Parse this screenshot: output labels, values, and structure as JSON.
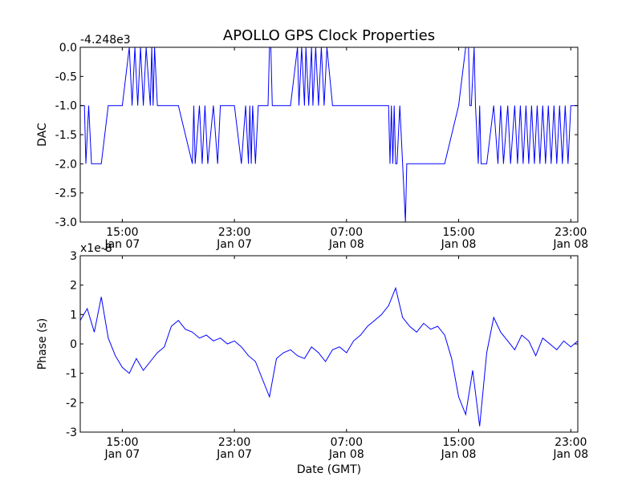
{
  "title": "APOLLO GPS Clock Properties",
  "colors": {
    "line": "#0000ff",
    "axes": "#000000",
    "background": "#ffffff"
  },
  "chart_data": [
    {
      "type": "line",
      "ylabel": "DAC",
      "xlabel": "",
      "offset_text": "-4.248e3",
      "ylim": [
        -3.0,
        0.0
      ],
      "yticks": [
        "0.0",
        "-0.5",
        "-1.0",
        "-1.5",
        "-2.0",
        "-2.5",
        "-3.0"
      ],
      "ytick_values": [
        0.0,
        -0.5,
        -1.0,
        -1.5,
        -2.0,
        -2.5,
        -3.0
      ],
      "xticks": [
        {
          "time": "15:00",
          "date": "Jan 07"
        },
        {
          "time": "23:00",
          "date": "Jan 07"
        },
        {
          "time": "07:00",
          "date": "Jan 08"
        },
        {
          "time": "15:00",
          "date": "Jan 08"
        },
        {
          "time": "23:00",
          "date": "Jan 08"
        }
      ],
      "xlim": [
        "Jan 07 12:00",
        "Jan 08 23:30"
      ],
      "series": [
        {
          "x": [
            "Jan 07 12:00",
            "Jan 07 12:18",
            "Jan 07 12:24",
            "Jan 07 12:36",
            "Jan 07 12:48",
            "Jan 07 13:00",
            "Jan 07 13:30",
            "Jan 07 14:00",
            "Jan 07 14:30",
            "Jan 07 15:00",
            "Jan 07 15:30",
            "Jan 07 15:42",
            "Jan 07 15:54",
            "Jan 07 16:06",
            "Jan 07 16:18",
            "Jan 07 16:30",
            "Jan 07 16:42",
            "Jan 07 17:00",
            "Jan 07 17:06",
            "Jan 07 17:12",
            "Jan 07 17:18",
            "Jan 07 17:30",
            "Jan 07 18:00",
            "Jan 07 19:00",
            "Jan 07 20:00",
            "Jan 07 20:06",
            "Jan 07 20:12",
            "Jan 07 20:30",
            "Jan 07 20:42",
            "Jan 07 20:54",
            "Jan 07 21:06",
            "Jan 07 21:30",
            "Jan 07 21:48",
            "Jan 07 22:00",
            "Jan 07 23:00",
            "Jan 07 23:30",
            "Jan 07 23:48",
            "Jan 08 00:00",
            "Jan 08 00:06",
            "Jan 08 00:12",
            "Jan 08 00:18",
            "Jan 08 00:30",
            "Jan 08 00:42",
            "Jan 08 01:00",
            "Jan 08 01:24",
            "Jan 08 01:30",
            "Jan 08 01:36",
            "Jan 08 01:42",
            "Jan 08 02:00",
            "Jan 08 03:00",
            "Jan 08 03:30",
            "Jan 08 03:36",
            "Jan 08 03:48",
            "Jan 08 04:00",
            "Jan 08 04:06",
            "Jan 08 04:18",
            "Jan 08 04:30",
            "Jan 08 04:36",
            "Jan 08 04:48",
            "Jan 08 05:00",
            "Jan 08 05:12",
            "Jan 08 05:24",
            "Jan 08 05:36",
            "Jan 08 06:00",
            "Jan 08 07:00",
            "Jan 08 08:00",
            "Jan 08 09:00",
            "Jan 08 10:00",
            "Jan 08 10:06",
            "Jan 08 10:12",
            "Jan 08 10:18",
            "Jan 08 10:24",
            "Jan 08 10:30",
            "Jan 08 10:36",
            "Jan 08 10:48",
            "Jan 08 11:00",
            "Jan 08 11:12",
            "Jan 08 11:18",
            "Jan 08 11:30",
            "Jan 08 11:36",
            "Jan 08 11:48",
            "Jan 08 12:00",
            "Jan 08 13:00",
            "Jan 08 14:00",
            "Jan 08 15:00",
            "Jan 08 15:30",
            "Jan 08 15:42",
            "Jan 08 15:48",
            "Jan 08 15:54",
            "Jan 08 16:06",
            "Jan 08 16:12",
            "Jan 08 16:24",
            "Jan 08 16:30",
            "Jan 08 16:36",
            "Jan 08 16:48",
            "Jan 08 17:00",
            "Jan 08 17:30",
            "Jan 08 17:48",
            "Jan 08 18:00",
            "Jan 08 18:12",
            "Jan 08 18:30",
            "Jan 08 18:42",
            "Jan 08 19:00",
            "Jan 08 19:12",
            "Jan 08 19:24",
            "Jan 08 19:36",
            "Jan 08 19:48",
            "Jan 08 20:00",
            "Jan 08 20:12",
            "Jan 08 20:24",
            "Jan 08 20:36",
            "Jan 08 20:48",
            "Jan 08 21:00",
            "Jan 08 21:12",
            "Jan 08 21:24",
            "Jan 08 21:36",
            "Jan 08 21:48",
            "Jan 08 22:00",
            "Jan 08 22:12",
            "Jan 08 22:24",
            "Jan 08 22:36",
            "Jan 08 22:48",
            "Jan 08 23:00",
            "Jan 08 23:12",
            "Jan 08 23:30"
          ],
          "y": [
            -1.0,
            -1.0,
            -2.0,
            -1.0,
            -2.0,
            -2.0,
            -2.0,
            -1.0,
            -1.0,
            -1.0,
            0.0,
            -1.0,
            0.0,
            -1.0,
            0.0,
            -1.0,
            0.0,
            -1.0,
            0.0,
            -1.0,
            0.0,
            -1.0,
            -1.0,
            -1.0,
            -2.0,
            -1.0,
            -2.0,
            -1.0,
            -2.0,
            -1.0,
            -2.0,
            -1.0,
            -2.0,
            -1.0,
            -1.0,
            -2.0,
            -1.0,
            -2.0,
            -1.0,
            -2.0,
            -1.0,
            -2.0,
            -1.0,
            -1.0,
            -1.0,
            0.0,
            0.0,
            -1.0,
            -1.0,
            -1.0,
            0.0,
            -1.0,
            0.0,
            -1.0,
            0.0,
            -1.0,
            0.0,
            -1.0,
            0.0,
            -1.0,
            0.0,
            -1.0,
            0.0,
            -1.0,
            -1.0,
            -1.0,
            -1.0,
            -1.0,
            -2.0,
            -1.0,
            -2.0,
            -1.0,
            -2.0,
            -2.0,
            -1.0,
            -2.0,
            -3.0,
            -2.0,
            -2.0,
            -2.0,
            -2.0,
            -2.0,
            -2.0,
            -2.0,
            -1.0,
            0.0,
            0.0,
            -1.0,
            -1.0,
            0.0,
            -1.0,
            -2.0,
            -1.0,
            -2.0,
            -2.0,
            -2.0,
            -1.0,
            -2.0,
            -1.0,
            -2.0,
            -1.0,
            -2.0,
            -1.0,
            -2.0,
            -1.0,
            -2.0,
            -1.0,
            -2.0,
            -1.0,
            -2.0,
            -1.0,
            -2.0,
            -1.0,
            -2.0,
            -1.0,
            -2.0,
            -1.0,
            -2.0,
            -1.0,
            -2.0,
            -1.0,
            -2.0,
            -1.0,
            -1.0,
            -1.0
          ]
        }
      ]
    },
    {
      "type": "line",
      "ylabel": "Phase (s)",
      "xlabel": "Date (GMT)",
      "offset_text": "x1e-8",
      "ylim": [
        -3,
        3
      ],
      "yticks": [
        "3",
        "2",
        "1",
        "0",
        "-1",
        "-2",
        "-3"
      ],
      "ytick_values": [
        3,
        2,
        1,
        0,
        -1,
        -2,
        -3
      ],
      "xticks": [
        {
          "time": "15:00",
          "date": "Jan 07"
        },
        {
          "time": "23:00",
          "date": "Jan 07"
        },
        {
          "time": "07:00",
          "date": "Jan 08"
        },
        {
          "time": "15:00",
          "date": "Jan 08"
        },
        {
          "time": "23:00",
          "date": "Jan 08"
        }
      ],
      "xlim": [
        "Jan 07 12:00",
        "Jan 08 23:30"
      ],
      "series": [
        {
          "x": [
            "Jan 07 12:00",
            "Jan 07 12:30",
            "Jan 07 13:00",
            "Jan 07 13:30",
            "Jan 07 14:00",
            "Jan 07 14:30",
            "Jan 07 15:00",
            "Jan 07 15:30",
            "Jan 07 16:00",
            "Jan 07 16:30",
            "Jan 07 17:00",
            "Jan 07 17:30",
            "Jan 07 18:00",
            "Jan 07 18:30",
            "Jan 07 19:00",
            "Jan 07 19:30",
            "Jan 07 20:00",
            "Jan 07 20:30",
            "Jan 07 21:00",
            "Jan 07 21:30",
            "Jan 07 22:00",
            "Jan 07 22:30",
            "Jan 07 23:00",
            "Jan 07 23:30",
            "Jan 08 00:00",
            "Jan 08 00:30",
            "Jan 08 01:00",
            "Jan 08 01:30",
            "Jan 08 02:00",
            "Jan 08 02:30",
            "Jan 08 03:00",
            "Jan 08 03:30",
            "Jan 08 04:00",
            "Jan 08 04:30",
            "Jan 08 05:00",
            "Jan 08 05:30",
            "Jan 08 06:00",
            "Jan 08 06:30",
            "Jan 08 07:00",
            "Jan 08 07:30",
            "Jan 08 08:00",
            "Jan 08 08:30",
            "Jan 08 09:00",
            "Jan 08 09:30",
            "Jan 08 10:00",
            "Jan 08 10:30",
            "Jan 08 11:00",
            "Jan 08 11:30",
            "Jan 08 12:00",
            "Jan 08 12:30",
            "Jan 08 13:00",
            "Jan 08 13:30",
            "Jan 08 14:00",
            "Jan 08 14:30",
            "Jan 08 15:00",
            "Jan 08 15:30",
            "Jan 08 16:00",
            "Jan 08 16:30",
            "Jan 08 17:00",
            "Jan 08 17:30",
            "Jan 08 18:00",
            "Jan 08 18:30",
            "Jan 08 19:00",
            "Jan 08 19:30",
            "Jan 08 20:00",
            "Jan 08 20:30",
            "Jan 08 21:00",
            "Jan 08 21:30",
            "Jan 08 22:00",
            "Jan 08 22:30",
            "Jan 08 23:00",
            "Jan 08 23:30"
          ],
          "y": [
            0.8,
            1.2,
            0.4,
            1.6,
            0.2,
            -0.4,
            -0.8,
            -1.0,
            -0.5,
            -0.9,
            -0.6,
            -0.3,
            -0.1,
            0.6,
            0.8,
            0.5,
            0.4,
            0.2,
            0.3,
            0.1,
            0.2,
            0.0,
            0.1,
            -0.1,
            -0.4,
            -0.6,
            -1.2,
            -1.8,
            -0.5,
            -0.3,
            -0.2,
            -0.4,
            -0.5,
            -0.1,
            -0.3,
            -0.6,
            -0.2,
            -0.1,
            -0.3,
            0.1,
            0.3,
            0.6,
            0.8,
            1.0,
            1.3,
            1.9,
            0.9,
            0.6,
            0.4,
            0.7,
            0.5,
            0.6,
            0.3,
            -0.5,
            -1.8,
            -2.4,
            -0.9,
            -2.8,
            -0.3,
            0.9,
            0.4,
            0.1,
            -0.2,
            0.3,
            0.1,
            -0.4,
            0.2,
            0.0,
            -0.2,
            0.1,
            -0.1,
            0.1
          ]
        }
      ]
    }
  ]
}
